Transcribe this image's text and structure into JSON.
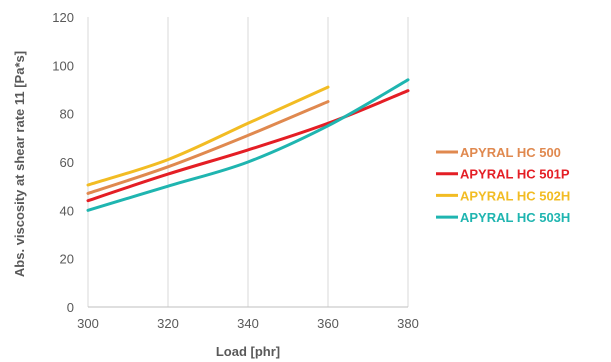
{
  "chart_data": {
    "type": "line",
    "xlabel": "Load [phr]",
    "ylabel": "Abs. viscosity at shear rate 11 [Pa*s]",
    "xlim": [
      300,
      380
    ],
    "ylim": [
      0,
      120
    ],
    "xticks": [
      "300",
      "320",
      "340",
      "360",
      "380"
    ],
    "yticks": [
      "0",
      "20",
      "40",
      "60",
      "80",
      "100",
      "120"
    ],
    "grid": "vertical",
    "legend_position": "right",
    "series": [
      {
        "name": "APYRAL HC 500",
        "color": "#E0894F",
        "x": [
          300,
          320,
          340,
          360
        ],
        "y": [
          47,
          58,
          71,
          85
        ]
      },
      {
        "name": "APYRAL HC 501P",
        "color": "#E41E25",
        "x": [
          300,
          320,
          340,
          360,
          380
        ],
        "y": [
          44,
          55,
          65,
          76,
          89.5
        ]
      },
      {
        "name": "APYRAL HC 502H",
        "color": "#F2BC23",
        "x": [
          300,
          320,
          340,
          360
        ],
        "y": [
          50.5,
          61,
          76,
          91
        ]
      },
      {
        "name": "APYRAL HC 503H",
        "color": "#1FB5B0",
        "x": [
          300,
          320,
          340,
          360,
          380
        ],
        "y": [
          40,
          50,
          60,
          75,
          94
        ]
      }
    ]
  }
}
